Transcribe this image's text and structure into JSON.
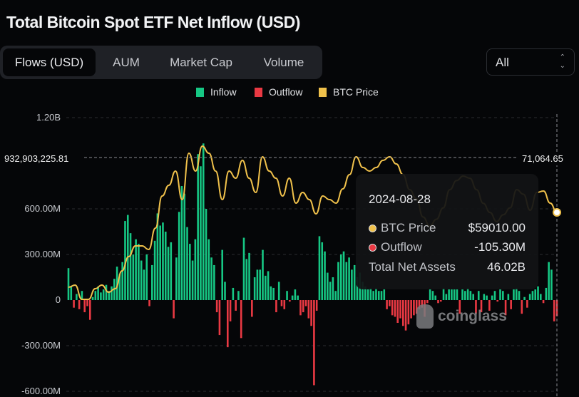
{
  "title": "Total Bitcoin Spot ETF Net Inflow (USD)",
  "tabs": [
    {
      "label": "Flows (USD)",
      "active": true
    },
    {
      "label": "AUM"
    },
    {
      "label": "Market Cap"
    },
    {
      "label": "Volume"
    }
  ],
  "range_select": {
    "value": "All"
  },
  "colors": {
    "inflow": "#16c784",
    "outflow": "#ea3943",
    "btc_price": "#f0c14b",
    "background": "#050608"
  },
  "crosshair": {
    "left_value": "932,903,225.81",
    "right_value": "71,064.65"
  },
  "tooltip": {
    "date": "2024-08-28",
    "rows": [
      {
        "label": "BTC Price",
        "value": "$59010.00",
        "color": "#f0c14b"
      },
      {
        "label": "Outflow",
        "value": "-105.30M",
        "color": "#ea3943"
      }
    ],
    "total_label": "Total Net Assets",
    "total_value": "46.02B"
  },
  "watermark": "coinglass",
  "chart_data": {
    "type": "bar",
    "legend": [
      "Inflow",
      "Outflow",
      "BTC Price"
    ],
    "legend_position": "top",
    "y_ticks": [
      "1.20B",
      "600.00M",
      "300.00M",
      "0",
      "-300.00M",
      "-600.00M"
    ],
    "y_tick_values": [
      1200,
      600,
      300,
      0,
      -300,
      -600
    ],
    "ylim": [
      -600,
      1200
    ],
    "unit": "M USD",
    "grid": true,
    "series": [
      {
        "name": "Inflow/Outflow",
        "type": "bar",
        "values": [
          210,
          90,
          -50,
          40,
          -60,
          60,
          -80,
          -40,
          -130,
          20,
          60,
          90,
          50,
          70,
          100,
          60,
          90,
          140,
          220,
          170,
          250,
          520,
          560,
          440,
          300,
          400,
          370,
          260,
          200,
          300,
          -40,
          230,
          390,
          570,
          490,
          510,
          450,
          350,
          380,
          -120,
          280,
          580,
          750,
          700,
          480,
          370,
          260,
          400,
          960,
          880,
          1030,
          600,
          400,
          280,
          230,
          -80,
          -230,
          330,
          120,
          -310,
          -140,
          80,
          -70,
          60,
          -250,
          410,
          270,
          310,
          -110,
          150,
          200,
          200,
          330,
          160,
          190,
          90,
          80,
          -80,
          120,
          -40,
          -60,
          60,
          -10,
          30,
          70,
          30,
          -100,
          -80,
          -40,
          -120,
          -170,
          -560,
          -70,
          420,
          380,
          320,
          180,
          120,
          150,
          60,
          250,
          300,
          320,
          250,
          280,
          200,
          230,
          150,
          180,
          120,
          90,
          70,
          80,
          60,
          80,
          60,
          60,
          70,
          -60,
          -40,
          -100,
          -110,
          -150,
          -120,
          -170,
          -200,
          -160,
          -120,
          -100,
          -90,
          -60,
          -50,
          -110,
          -20,
          70,
          60,
          30,
          -20,
          -10,
          80,
          40,
          70,
          70,
          70,
          70,
          -90,
          70,
          60,
          80,
          60,
          40,
          -90,
          60,
          -80,
          40,
          30,
          -70,
          30,
          60,
          -10,
          70,
          60,
          -100,
          40,
          -60,
          70,
          80,
          60,
          -90,
          20,
          -50,
          40,
          60,
          70,
          90,
          40,
          -20,
          80,
          250,
          200,
          -140,
          -105.3
        ]
      },
      {
        "name": "BTC Price",
        "type": "line",
        "values": [
          42567,
          43036,
          39905,
          39905,
          42254,
          43036,
          41471,
          42254,
          46169,
          49301,
          51650,
          51650,
          50867,
          55565,
          62612,
          64961,
          68093,
          61829,
          72008,
          68093,
          73574,
          72008,
          68093,
          61829,
          68093,
          66527,
          70442,
          66527,
          63395,
          71225,
          68093,
          66527,
          62612,
          66527,
          61046,
          63395,
          61829,
          58697,
          62612,
          61829,
          61046,
          64178,
          67310,
          71225,
          68876,
          68093,
          68876,
          70442,
          71225,
          69659,
          67310,
          64000,
          62000,
          58000,
          56000,
          57500,
          60000,
          64000,
          66000,
          67000,
          66500,
          64000,
          61000,
          59000,
          57000,
          58500,
          60000,
          64000,
          63000,
          59480,
          63395,
          63708,
          61046,
          59010
        ]
      }
    ]
  }
}
